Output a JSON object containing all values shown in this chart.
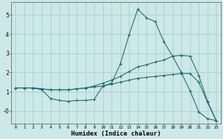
{
  "xlabel": "Humidex (Indice chaleur)",
  "background_color": "#cce8e8",
  "grid_color": "#aacccc",
  "line_color": "#1a6b6b",
  "xlim": [
    -0.5,
    23.5
  ],
  "ylim": [
    -0.65,
    5.65
  ],
  "yticks": [
    0,
    1,
    2,
    3,
    4,
    5
  ],
  "ytick_labels": [
    "-0",
    "1",
    "2",
    "3",
    "4",
    "5"
  ],
  "xticks": [
    0,
    1,
    2,
    3,
    4,
    5,
    6,
    7,
    8,
    9,
    10,
    11,
    12,
    13,
    14,
    15,
    16,
    17,
    18,
    19,
    20,
    21,
    22,
    23
  ],
  "line1_x": [
    0,
    1,
    2,
    3,
    4,
    5,
    6,
    7,
    8,
    9,
    10,
    11,
    12,
    13,
    14,
    15,
    16,
    17,
    18,
    19,
    20,
    21,
    22,
    23
  ],
  "line1_y": [
    1.2,
    1.2,
    1.2,
    1.1,
    0.65,
    0.55,
    0.5,
    0.55,
    0.55,
    0.6,
    1.3,
    1.45,
    2.45,
    3.95,
    5.3,
    4.85,
    4.65,
    3.6,
    2.85,
    2.0,
    1.05,
    -0.05,
    -0.4,
    -0.5
  ],
  "line2_x": [
    0,
    1,
    2,
    3,
    4,
    5,
    6,
    7,
    8,
    9,
    10,
    11,
    12,
    13,
    14,
    15,
    16,
    17,
    18,
    19,
    20,
    21,
    22,
    23
  ],
  "line2_y": [
    1.2,
    1.2,
    1.2,
    1.15,
    1.1,
    1.1,
    1.1,
    1.15,
    1.2,
    1.3,
    1.45,
    1.6,
    1.8,
    2.05,
    2.3,
    2.4,
    2.55,
    2.65,
    2.85,
    2.9,
    2.85,
    1.85,
    0.5,
    -0.5
  ],
  "line3_x": [
    0,
    1,
    2,
    3,
    4,
    5,
    6,
    7,
    8,
    9,
    10,
    11,
    12,
    13,
    14,
    15,
    16,
    17,
    18,
    19,
    20,
    21,
    22,
    23
  ],
  "line3_y": [
    1.2,
    1.2,
    1.2,
    1.15,
    1.1,
    1.1,
    1.1,
    1.15,
    1.2,
    1.25,
    1.3,
    1.4,
    1.5,
    1.6,
    1.7,
    1.75,
    1.8,
    1.85,
    1.9,
    1.95,
    1.95,
    1.5,
    0.45,
    -0.5
  ]
}
